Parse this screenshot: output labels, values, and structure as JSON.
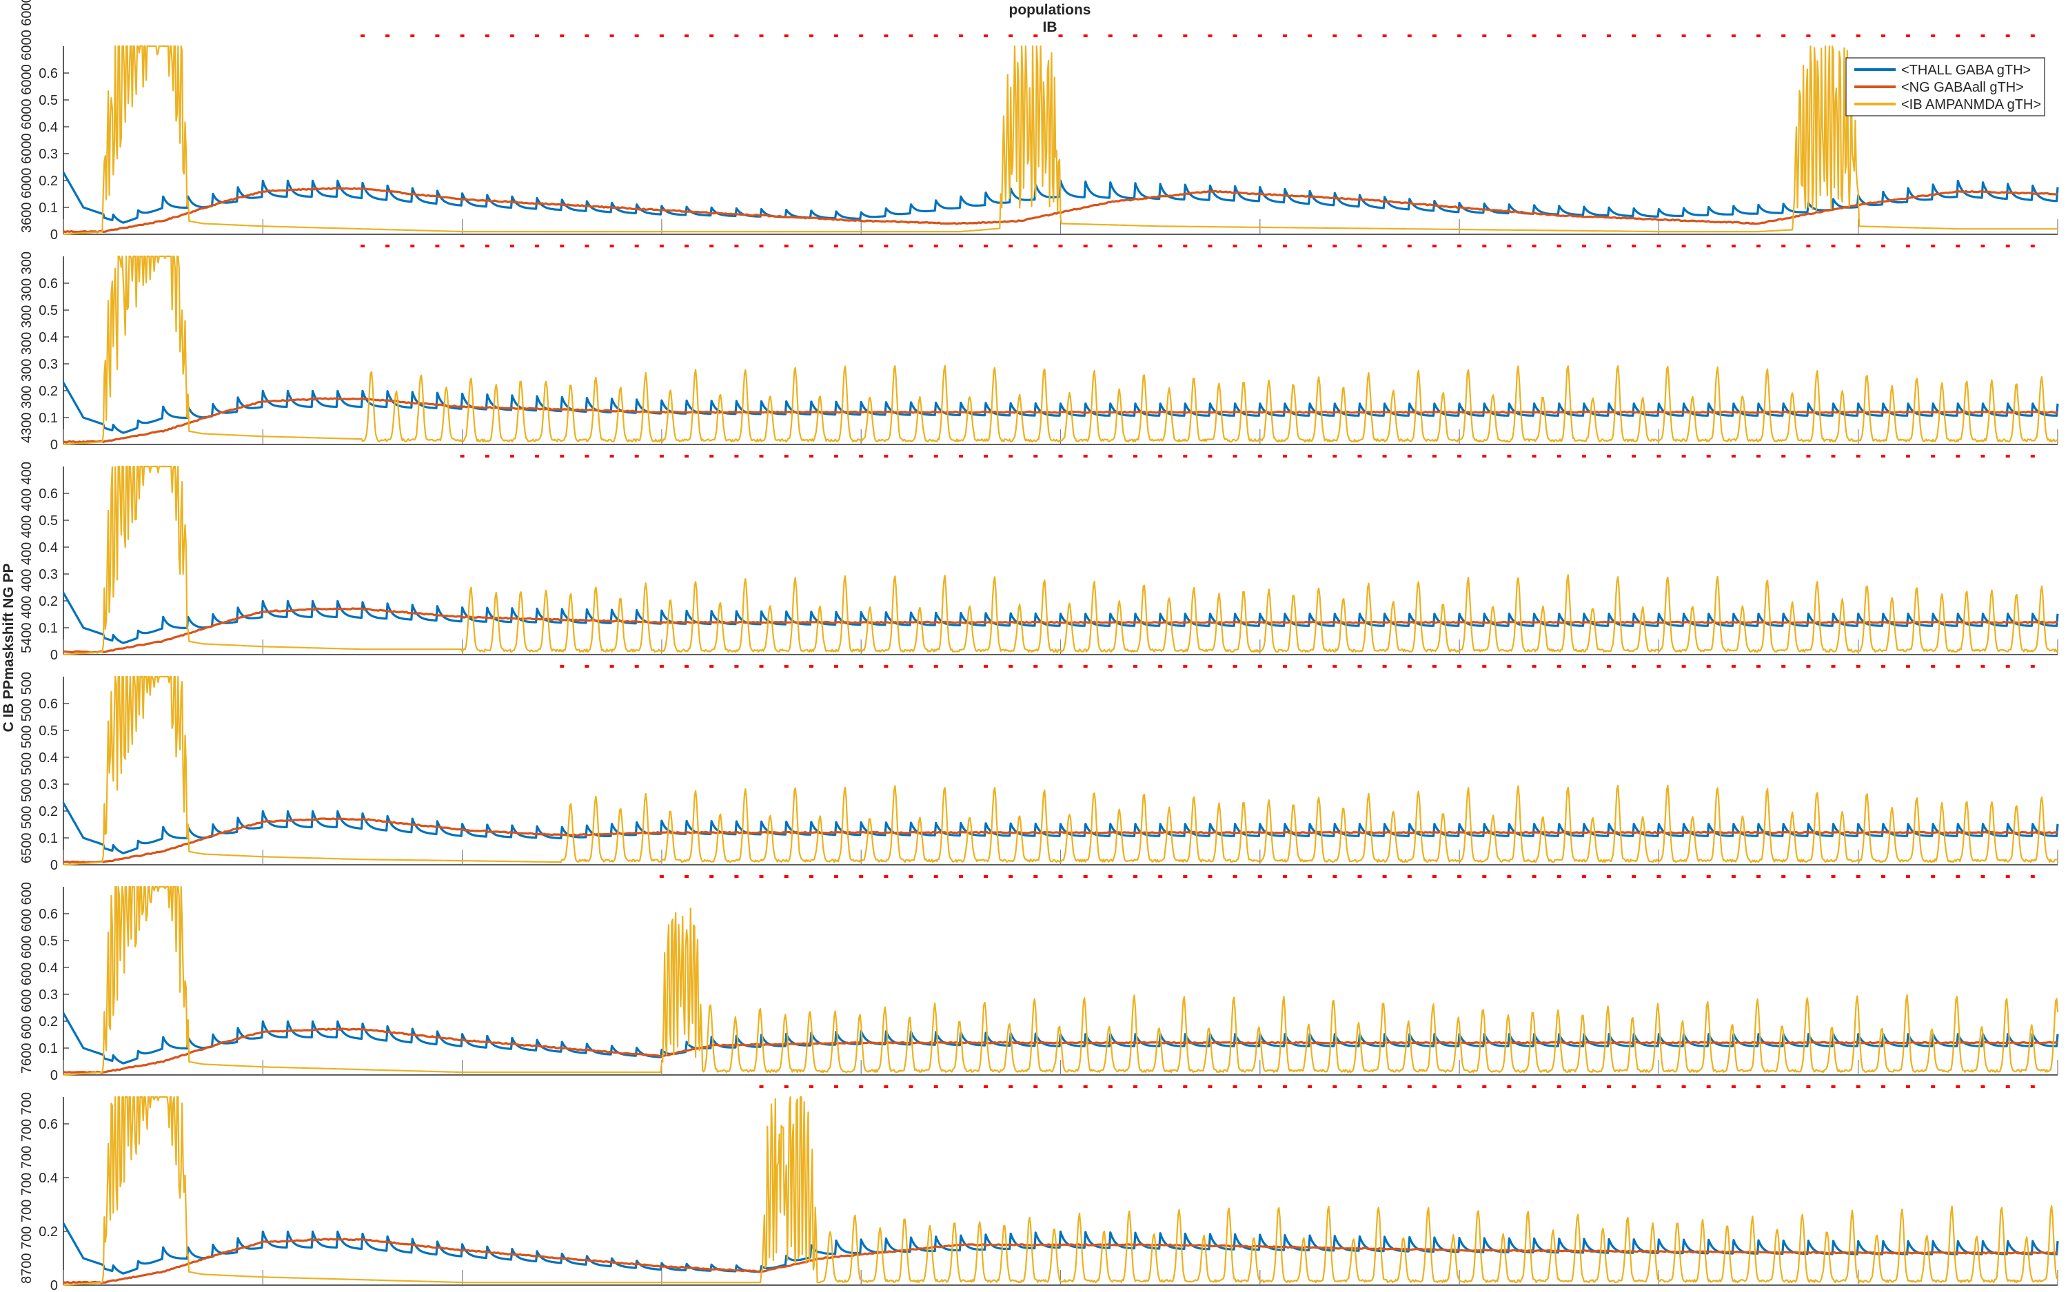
{
  "chart_data": {
    "type": "line",
    "title": [
      "populations",
      "IB"
    ],
    "ylabel": "C IB PPmaskshift NG PP",
    "xlim": [
      0,
      2000
    ],
    "x_ticks": [
      "0",
      "200",
      "400",
      "600",
      "800",
      "1000",
      "1200",
      "1400",
      "1600",
      "1800",
      "2000"
    ],
    "legend": {
      "placement": "top-right",
      "entries": [
        "<THALL GABA gTH>",
        "<NG GABAall gTH>",
        "<IB AMPANMDA gTH>"
      ]
    },
    "colors": [
      "#0072bd",
      "#d95319",
      "#edb120"
    ],
    "marker_color": "#ff0000",
    "panels": [
      {
        "row_labels": [
          "3600",
          "6000",
          "6000",
          "6000",
          "6000",
          "6000",
          "6000"
        ],
        "ylim": [
          0,
          0.7
        ],
        "y_ticks": [
          "0",
          "0.1",
          "0.2",
          "0.3",
          "0.4",
          "0.5",
          "0.6"
        ],
        "marker_start": 300,
        "ib_bursts": [
          [
            40,
            125,
            0.7
          ],
          [
            940,
            1000,
            0.7
          ],
          [
            1735,
            1800,
            0.7
          ]
        ],
        "ib_rhythm_start": null,
        "series": [
          {
            "name": "<THALL GABA gTH>",
            "x": [
              0,
              20,
              60,
              100,
              140,
              200,
              280,
              400,
              600,
              800,
              1000,
              1200,
              1400,
              1600,
              1750,
              1900,
              2000
            ],
            "y": [
              0.23,
              0.1,
              0.05,
              0.12,
              0.12,
              0.17,
              0.17,
              0.13,
              0.09,
              0.07,
              0.17,
              0.15,
              0.1,
              0.08,
              0.1,
              0.17,
              0.15
            ]
          },
          {
            "name": "<NG GABAall gTH>",
            "x": [
              0,
              40,
              100,
              160,
              200,
              260,
              300,
              400,
              600,
              800,
              900,
              960,
              1050,
              1150,
              1300,
              1500,
              1700,
              1800,
              1900,
              2000
            ],
            "y": [
              0.01,
              0.01,
              0.05,
              0.12,
              0.16,
              0.17,
              0.17,
              0.13,
              0.09,
              0.05,
              0.04,
              0.05,
              0.12,
              0.16,
              0.13,
              0.07,
              0.04,
              0.11,
              0.16,
              0.15
            ]
          },
          {
            "name": "<IB AMPANMDA gTH>",
            "x": [
              0,
              40,
              60,
              100,
              125,
              140,
              200,
              300,
              400,
              900,
              1000,
              1100,
              1600,
              1700,
              1800,
              1900,
              2000
            ],
            "y": [
              0.0,
              0.01,
              0.3,
              0.65,
              0.05,
              0.04,
              0.03,
              0.02,
              0.01,
              0.01,
              0.04,
              0.03,
              0.01,
              0.01,
              0.03,
              0.02,
              0.02
            ]
          }
        ]
      },
      {
        "row_labels": [
          "4300",
          "300",
          "300",
          "300",
          "300",
          "300",
          "300"
        ],
        "ylim": [
          0,
          0.7
        ],
        "y_ticks": [
          "0",
          "0.1",
          "0.2",
          "0.3",
          "0.4",
          "0.5",
          "0.6"
        ],
        "marker_start": 300,
        "ib_bursts": [
          [
            40,
            125,
            0.7
          ]
        ],
        "ib_rhythm_start": 300,
        "series": [
          {
            "name": "<THALL GABA gTH>",
            "x": [
              0,
              20,
              60,
              100,
              140,
              200,
              280,
              320,
              600,
              1000,
              1400,
              1800,
              2000
            ],
            "y": [
              0.23,
              0.1,
              0.05,
              0.12,
              0.12,
              0.17,
              0.17,
              0.17,
              0.14,
              0.13,
              0.13,
              0.13,
              0.13
            ]
          },
          {
            "name": "<NG GABAall gTH>",
            "x": [
              0,
              40,
              100,
              160,
              200,
              260,
              300,
              400,
              600,
              1000,
              1400,
              1800,
              2000
            ],
            "y": [
              0.01,
              0.01,
              0.05,
              0.12,
              0.16,
              0.17,
              0.17,
              0.14,
              0.12,
              0.12,
              0.12,
              0.12,
              0.12
            ]
          },
          {
            "name": "<IB AMPANMDA gTH>",
            "x": [
              0,
              40,
              60,
              100,
              125,
              140,
              200,
              300
            ],
            "y": [
              0.0,
              0.01,
              0.3,
              0.65,
              0.05,
              0.04,
              0.03,
              0.02
            ]
          }
        ]
      },
      {
        "row_labels": [
          "5400",
          "400",
          "400",
          "400",
          "400",
          "400",
          "400"
        ],
        "ylim": [
          0,
          0.7
        ],
        "y_ticks": [
          "0",
          "0.1",
          "0.2",
          "0.3",
          "0.4",
          "0.5",
          "0.6"
        ],
        "marker_start": 400,
        "ib_bursts": [
          [
            40,
            125,
            0.7
          ]
        ],
        "ib_rhythm_start": 400,
        "series": [
          {
            "name": "<THALL GABA gTH>",
            "x": [
              0,
              20,
              60,
              100,
              140,
              200,
              280,
              400,
              600,
              1000,
              1400,
              1800,
              2000
            ],
            "y": [
              0.23,
              0.1,
              0.05,
              0.12,
              0.12,
              0.17,
              0.17,
              0.15,
              0.14,
              0.13,
              0.13,
              0.13,
              0.13
            ]
          },
          {
            "name": "<NG GABAall gTH>",
            "x": [
              0,
              40,
              100,
              160,
              200,
              260,
              300,
              400,
              600,
              1000,
              1400,
              1800,
              2000
            ],
            "y": [
              0.01,
              0.01,
              0.05,
              0.12,
              0.16,
              0.17,
              0.17,
              0.14,
              0.12,
              0.12,
              0.12,
              0.12,
              0.12
            ]
          },
          {
            "name": "<IB AMPANMDA gTH>",
            "x": [
              0,
              40,
              60,
              100,
              125,
              140,
              200,
              300,
              400
            ],
            "y": [
              0.0,
              0.01,
              0.3,
              0.65,
              0.05,
              0.04,
              0.03,
              0.02,
              0.02
            ]
          }
        ]
      },
      {
        "row_labels": [
          "6500",
          "500",
          "500",
          "500",
          "500",
          "500",
          "500"
        ],
        "ylim": [
          0,
          0.7
        ],
        "y_ticks": [
          "0",
          "0.1",
          "0.2",
          "0.3",
          "0.4",
          "0.5",
          "0.6"
        ],
        "marker_start": 500,
        "ib_bursts": [
          [
            40,
            125,
            0.7
          ]
        ],
        "ib_rhythm_start": 500,
        "series": [
          {
            "name": "<THALL GABA gTH>",
            "x": [
              0,
              20,
              60,
              100,
              140,
              200,
              280,
              400,
              500,
              600,
              1000,
              1400,
              1800,
              2000
            ],
            "y": [
              0.23,
              0.1,
              0.05,
              0.12,
              0.12,
              0.17,
              0.17,
              0.13,
              0.12,
              0.14,
              0.13,
              0.13,
              0.13,
              0.13
            ]
          },
          {
            "name": "<NG GABAall gTH>",
            "x": [
              0,
              40,
              100,
              160,
              200,
              260,
              300,
              400,
              500,
              600,
              1000,
              1400,
              1800,
              2000
            ],
            "y": [
              0.01,
              0.01,
              0.05,
              0.12,
              0.16,
              0.17,
              0.17,
              0.13,
              0.11,
              0.12,
              0.12,
              0.12,
              0.12,
              0.12
            ]
          },
          {
            "name": "<IB AMPANMDA gTH>",
            "x": [
              0,
              40,
              60,
              100,
              125,
              140,
              200,
              300,
              500
            ],
            "y": [
              0.0,
              0.01,
              0.3,
              0.65,
              0.05,
              0.04,
              0.03,
              0.02,
              0.01
            ]
          }
        ]
      },
      {
        "row_labels": [
          "7600",
          "600",
          "600",
          "600",
          "600",
          "600",
          "600"
        ],
        "ylim": [
          0,
          0.7
        ],
        "y_ticks": [
          "0",
          "0.1",
          "0.2",
          "0.3",
          "0.4",
          "0.5",
          "0.6"
        ],
        "marker_start": 600,
        "ib_bursts": [
          [
            40,
            125,
            0.7
          ],
          [
            600,
            640,
            0.62
          ]
        ],
        "ib_rhythm_start": 640,
        "series": [
          {
            "name": "<THALL GABA gTH>",
            "x": [
              0,
              20,
              60,
              100,
              140,
              200,
              280,
              400,
              600,
              640,
              800,
              1000,
              1400,
              1800,
              2000
            ],
            "y": [
              0.23,
              0.1,
              0.05,
              0.12,
              0.12,
              0.17,
              0.17,
              0.13,
              0.08,
              0.12,
              0.14,
              0.13,
              0.13,
              0.13,
              0.13
            ]
          },
          {
            "name": "<NG GABAall gTH>",
            "x": [
              0,
              40,
              100,
              160,
              200,
              260,
              300,
              400,
              600,
              650,
              800,
              1000,
              1400,
              1800,
              2000
            ],
            "y": [
              0.01,
              0.01,
              0.05,
              0.12,
              0.16,
              0.17,
              0.17,
              0.13,
              0.07,
              0.11,
              0.12,
              0.12,
              0.12,
              0.12,
              0.12
            ]
          },
          {
            "name": "<IB AMPANMDA gTH>",
            "x": [
              0,
              40,
              60,
              100,
              125,
              140,
              200,
              300,
              400,
              600
            ],
            "y": [
              0.0,
              0.01,
              0.3,
              0.65,
              0.05,
              0.04,
              0.03,
              0.02,
              0.01,
              0.01
            ]
          }
        ]
      },
      {
        "row_labels": [
          "8700",
          "700",
          "700",
          "700",
          "700",
          "700",
          "700"
        ],
        "ylim": [
          0,
          0.7
        ],
        "y_ticks": [
          "0",
          "0.2",
          "0.4",
          "0.6"
        ],
        "marker_start": 700,
        "ib_bursts": [
          [
            40,
            125,
            0.7
          ],
          [
            700,
            755,
            0.7
          ]
        ],
        "ib_rhythm_start": 760,
        "series": [
          {
            "name": "<THALL GABA gTH>",
            "x": [
              0,
              20,
              60,
              100,
              140,
              200,
              280,
              400,
              600,
              700,
              760,
              1000,
              1400,
              1800,
              2000
            ],
            "y": [
              0.23,
              0.1,
              0.05,
              0.12,
              0.12,
              0.17,
              0.17,
              0.13,
              0.07,
              0.06,
              0.14,
              0.17,
              0.15,
              0.14,
              0.14
            ]
          },
          {
            "name": "<NG GABAall gTH>",
            "x": [
              0,
              40,
              100,
              160,
              200,
              260,
              300,
              400,
              600,
              700,
              760,
              900,
              1100,
              1400,
              1800,
              2000
            ],
            "y": [
              0.01,
              0.01,
              0.05,
              0.12,
              0.16,
              0.17,
              0.17,
              0.13,
              0.07,
              0.05,
              0.1,
              0.15,
              0.15,
              0.13,
              0.12,
              0.12
            ]
          },
          {
            "name": "<IB AMPANMDA gTH>",
            "x": [
              0,
              40,
              60,
              100,
              125,
              140,
              200,
              300,
              400,
              700
            ],
            "y": [
              0.0,
              0.01,
              0.3,
              0.65,
              0.05,
              0.04,
              0.03,
              0.02,
              0.01,
              0.01
            ]
          }
        ]
      }
    ]
  }
}
